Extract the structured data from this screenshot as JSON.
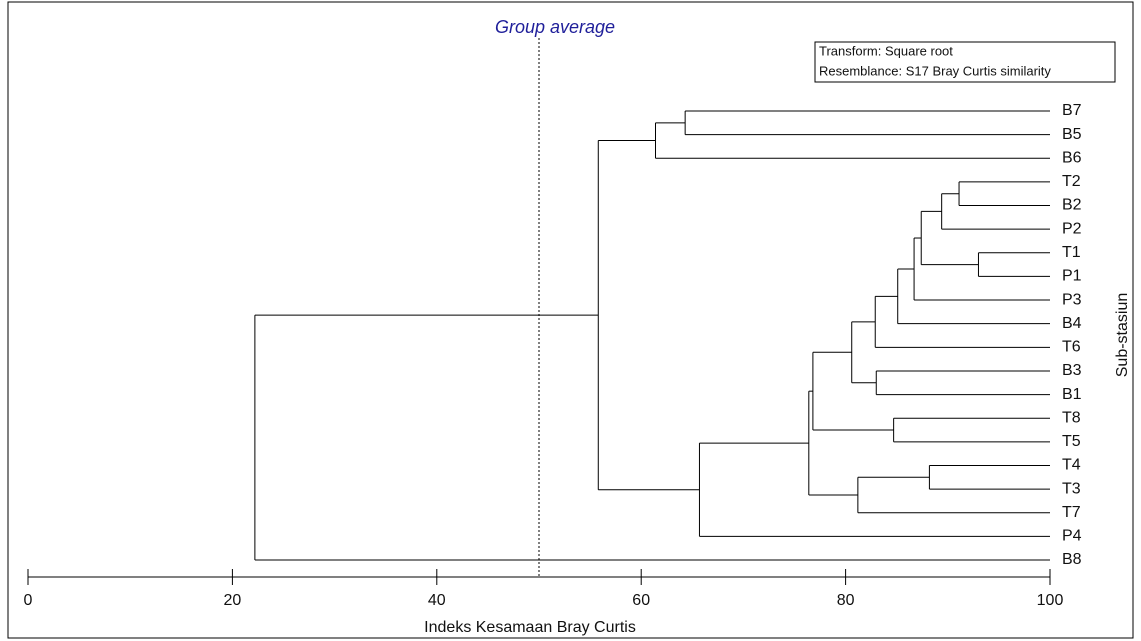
{
  "chart_data": {
    "type": "dendrogram",
    "title": "Group average",
    "annotations": [
      "Transform: Square root",
      "Resemblance: S17 Bray Curtis similarity"
    ],
    "x_label": "Indeks Kesamaan Bray Curtis",
    "y_label": "Sub-stasiun",
    "xlim": [
      0,
      100
    ],
    "xticks": [
      0,
      20,
      40,
      60,
      80,
      100
    ],
    "reference_line": 50,
    "tree": {
      "value": 22.2,
      "children": [
        {
          "value": 55.8,
          "children": [
            {
              "value": 61.4,
              "children": [
                {
                  "value": 64.3,
                  "children": [
                    "B7",
                    "B5"
                  ]
                },
                "B6"
              ]
            },
            {
              "value": 65.7,
              "children": [
                {
                  "value": 76.4,
                  "children": [
                    {
                      "value": 76.8,
                      "children": [
                        {
                          "value": 80.6,
                          "children": [
                            {
                              "value": 82.9,
                              "children": [
                                {
                                  "value": 85.1,
                                  "children": [
                                    {
                                      "value": 86.7,
                                      "children": [
                                        {
                                          "value": 87.4,
                                          "children": [
                                            {
                                              "value": 89.4,
                                              "children": [
                                                {
                                                  "value": 91.1,
                                                  "children": [
                                                    "T2",
                                                    "B2"
                                                  ]
                                                },
                                                "P2"
                                              ]
                                            },
                                            {
                                              "value": 93.0,
                                              "children": [
                                                "T1",
                                                "P1"
                                              ]
                                            }
                                          ]
                                        },
                                        "P3"
                                      ]
                                    },
                                    "B4"
                                  ]
                                },
                                "T6"
                              ]
                            },
                            {
                              "value": 83.0,
                              "children": [
                                "B3",
                                "B1"
                              ]
                            }
                          ]
                        },
                        {
                          "value": 84.7,
                          "children": [
                            "T8",
                            "T5"
                          ]
                        }
                      ]
                    },
                    {
                      "value": 81.2,
                      "children": [
                        {
                          "value": 88.2,
                          "children": [
                            "T4",
                            "T3"
                          ]
                        },
                        "T7"
                      ]
                    }
                  ]
                },
                "P4"
              ]
            }
          ]
        },
        "B8"
      ]
    }
  }
}
